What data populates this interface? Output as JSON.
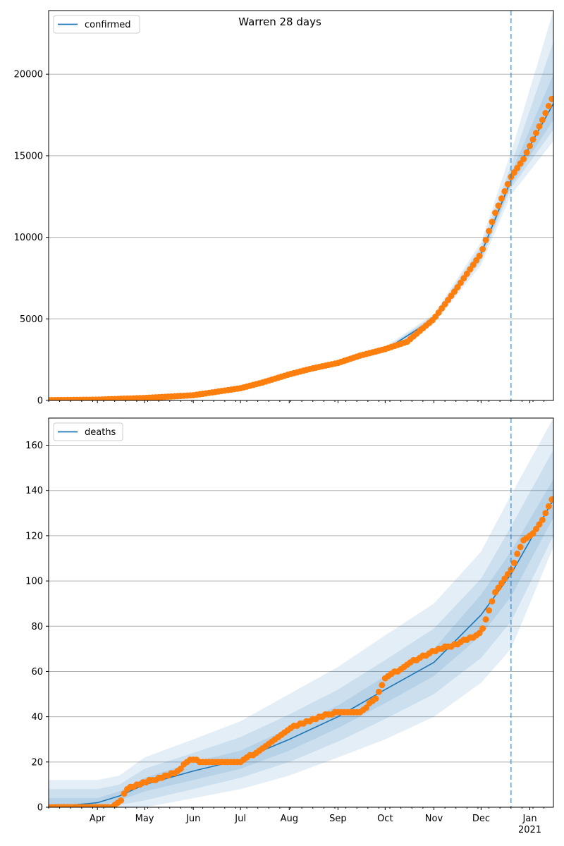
{
  "figure": {
    "title": "Warren 28 days"
  },
  "colors": {
    "model": "#1f77b4",
    "observed": "#ff7f0e",
    "grid": "#b0b0b0",
    "band": "#1f77b4"
  },
  "x_axis": {
    "start": "2020-03-01",
    "end": "2021-01-16",
    "ticks": [
      {
        "date": "2020-04-01",
        "label": "Apr"
      },
      {
        "date": "2020-05-01",
        "label": "May"
      },
      {
        "date": "2020-06-01",
        "label": "Jun"
      },
      {
        "date": "2020-07-01",
        "label": "Jul"
      },
      {
        "date": "2020-08-01",
        "label": "Aug"
      },
      {
        "date": "2020-09-01",
        "label": "Sep"
      },
      {
        "date": "2020-10-01",
        "label": "Oct"
      },
      {
        "date": "2020-11-01",
        "label": "Nov"
      },
      {
        "date": "2020-12-01",
        "label": "Dec"
      },
      {
        "date": "2021-01-01",
        "label": "Jan",
        "sublabel": "2021"
      }
    ],
    "forecast_start": "2020-12-20"
  },
  "chart_data": [
    {
      "type": "line",
      "legend": "confirmed",
      "legend_position": "top-left",
      "ylim": [
        0,
        23900
      ],
      "yticks": [
        0,
        5000,
        10000,
        15000,
        20000
      ],
      "grid": true,
      "model": {
        "x": [
          "2020-03-01",
          "2020-04-01",
          "2020-05-01",
          "2020-06-01",
          "2020-07-01",
          "2020-08-01",
          "2020-09-01",
          "2020-10-01",
          "2020-11-01",
          "2020-12-01",
          "2020-12-20",
          "2021-01-16"
        ],
        "y": [
          0,
          20,
          120,
          300,
          800,
          1600,
          2300,
          3100,
          5000,
          9000,
          13500,
          18200
        ]
      },
      "bands": [
        {
          "lower": [
            0,
            0,
            80,
            250,
            700,
            1450,
            2150,
            2950,
            4700,
            8300,
            12600,
            15900
          ],
          "upper": [
            0,
            40,
            160,
            350,
            900,
            1750,
            2450,
            3300,
            5300,
            9700,
            15200,
            23900
          ]
        },
        {
          "lower": [
            0,
            5,
            95,
            270,
            740,
            1500,
            2200,
            3000,
            4800,
            8550,
            13000,
            16600
          ],
          "upper": [
            0,
            35,
            145,
            330,
            860,
            1700,
            2400,
            3200,
            5200,
            9450,
            14400,
            22000
          ]
        },
        {
          "lower": [
            0,
            10,
            105,
            285,
            770,
            1550,
            2250,
            3050,
            4900,
            8750,
            13200,
            17200
          ],
          "upper": [
            0,
            30,
            135,
            315,
            830,
            1650,
            2350,
            3150,
            5100,
            9250,
            13900,
            20000
          ]
        }
      ],
      "observed": {
        "x": [
          "2020-03-01",
          "2020-04-01",
          "2020-05-01",
          "2020-06-01",
          "2020-07-01",
          "2020-07-15",
          "2020-08-01",
          "2020-08-15",
          "2020-09-01",
          "2020-09-15",
          "2020-10-01",
          "2020-10-15",
          "2020-11-01",
          "2020-11-15",
          "2020-12-01",
          "2020-12-10",
          "2020-12-20",
          "2020-12-28",
          "2021-01-04",
          "2021-01-10",
          "2021-01-16"
        ],
        "y": [
          20,
          50,
          150,
          320,
          750,
          1100,
          1600,
          1950,
          2300,
          2750,
          3150,
          3600,
          5000,
          6800,
          9000,
          11500,
          13700,
          14800,
          16200,
          17400,
          18700
        ]
      }
    },
    {
      "type": "line",
      "legend": "deaths",
      "legend_position": "top-left",
      "ylim": [
        0,
        172
      ],
      "yticks": [
        0,
        20,
        40,
        60,
        80,
        100,
        120,
        140,
        160
      ],
      "grid": true,
      "model": {
        "x": [
          "2020-03-01",
          "2020-04-01",
          "2020-04-15",
          "2020-05-01",
          "2020-06-01",
          "2020-07-01",
          "2020-08-01",
          "2020-09-01",
          "2020-10-01",
          "2020-11-01",
          "2020-12-01",
          "2020-12-20",
          "2021-01-16"
        ],
        "y": [
          0,
          2,
          5,
          10,
          16,
          21,
          30,
          40,
          52,
          64,
          85,
          103,
          136
        ]
      },
      "bands": [
        {
          "lower": [
            0,
            0,
            0,
            0,
            4,
            8,
            14,
            22,
            30,
            40,
            55,
            70,
            115
          ],
          "upper": [
            12,
            12,
            14,
            22,
            30,
            38,
            50,
            62,
            76,
            90,
            113,
            138,
            172
          ]
        },
        {
          "lower": [
            0,
            0,
            1,
            3,
            8,
            13,
            20,
            29,
            39,
            50,
            66,
            82,
            120
          ],
          "upper": [
            8,
            8,
            10,
            17,
            24,
            31,
            41,
            52,
            65,
            79,
            101,
            124,
            158
          ]
        },
        {
          "lower": [
            0,
            0,
            3,
            7,
            12,
            17,
            25,
            35,
            46,
            58,
            76,
            93,
            128
          ],
          "upper": [
            4,
            4,
            7,
            13,
            20,
            25,
            35,
            45,
            58,
            70,
            94,
            113,
            145
          ]
        }
      ],
      "observed": {
        "x": [
          "2020-03-01",
          "2020-04-10",
          "2020-04-16",
          "2020-04-20",
          "2020-05-01",
          "2020-05-20",
          "2020-05-30",
          "2020-06-10",
          "2020-07-01",
          "2020-07-15",
          "2020-08-01",
          "2020-08-20",
          "2020-09-01",
          "2020-09-15",
          "2020-09-25",
          "2020-10-01",
          "2020-10-20",
          "2020-11-01",
          "2020-11-15",
          "2020-12-01",
          "2020-12-10",
          "2020-12-20",
          "2020-12-28",
          "2021-01-04",
          "2021-01-10",
          "2021-01-16"
        ],
        "y": [
          0,
          0,
          3,
          8,
          11,
          15,
          21,
          20,
          20,
          26,
          35,
          40,
          42,
          42,
          48,
          57,
          65,
          69,
          72,
          77,
          95,
          105,
          118,
          122,
          128,
          138
        ]
      }
    }
  ]
}
